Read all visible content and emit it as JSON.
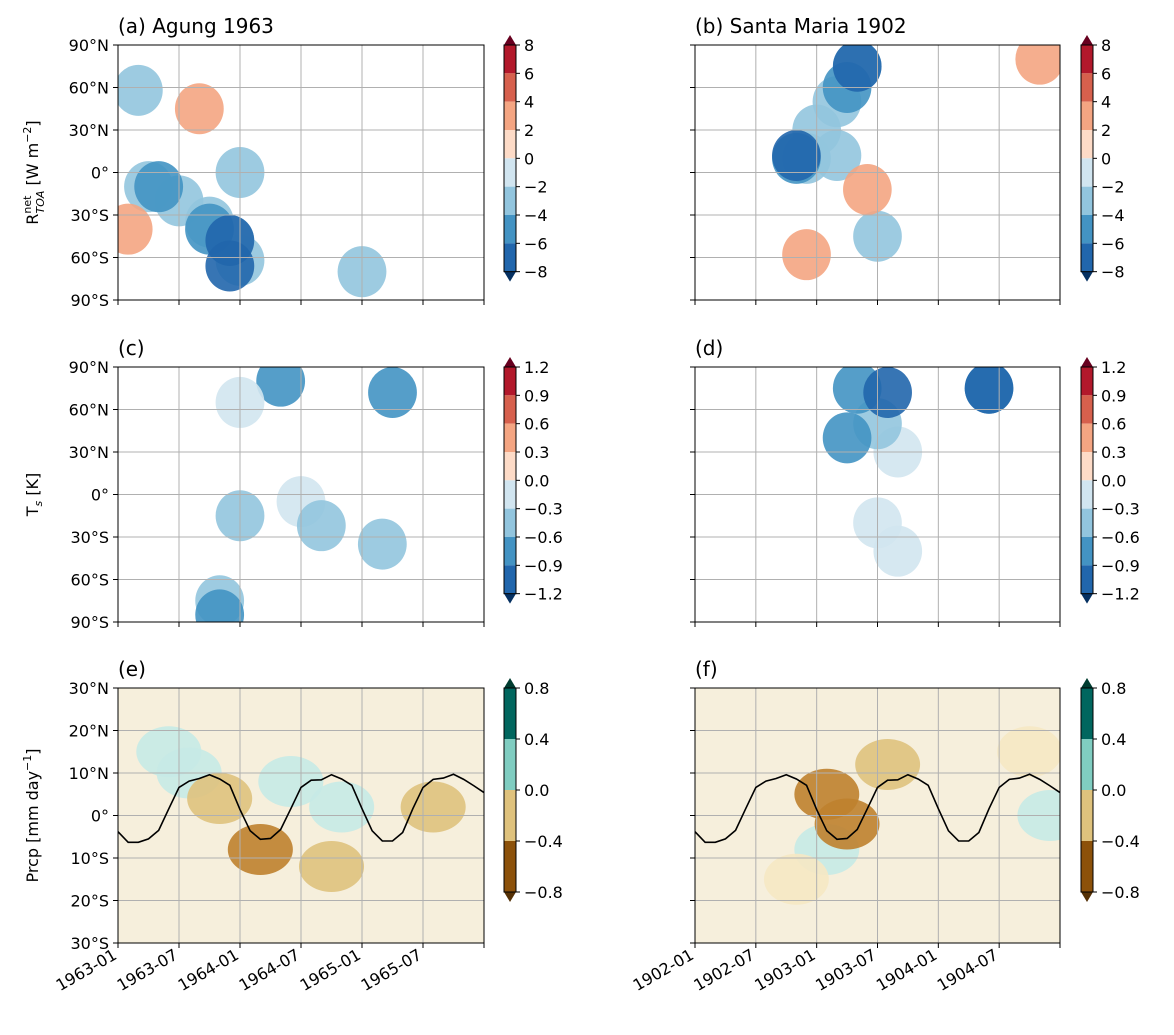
{
  "colors": {
    "grid": "#b0b0b0",
    "rdbu": [
      "#053061",
      "#2166ac",
      "#4393c3",
      "#92c5de",
      "#d1e5f0",
      "#fddbc7",
      "#f4a582",
      "#d6604d",
      "#b2182b",
      "#67001f"
    ],
    "brbg": [
      "#543005",
      "#8c510a",
      "#bf812d",
      "#dfc27d",
      "#f6e8c3",
      "#c7eae5",
      "#80cdc1",
      "#35978f",
      "#01665e",
      "#003c30"
    ]
  },
  "row_labels": [
    "R$_{TOA}^{net}$ [W m$^{-2}$]",
    "T$_s$ [K]",
    "Prcp [mm day$^{-1}$]"
  ],
  "row_label_parts": [
    {
      "main": "R",
      "sub": "TOA",
      "sup": "net",
      "unit": " [W m",
      "unit_sup": "−2",
      "unit_end": "]"
    },
    {
      "main": "T",
      "sub": "s",
      "sup": "",
      "unit": " [K]",
      "unit_sup": "",
      "unit_end": ""
    },
    {
      "main": "Prcp",
      "sub": "",
      "sup": "",
      "unit": " [mm day",
      "unit_sup": "−1",
      "unit_end": "]"
    }
  ],
  "lat_ticks_full": [
    "90°N",
    "60°N",
    "30°N",
    "0°",
    "30°S",
    "60°S",
    "90°S"
  ],
  "lat_ticks_trop": [
    "30°N",
    "20°N",
    "10°N",
    "0°",
    "10°S",
    "20°S",
    "30°S"
  ],
  "colorbars": [
    {
      "labels": [
        "8",
        "6",
        "4",
        "2",
        "0",
        "−2",
        "−4",
        "−6",
        "−8"
      ],
      "cmap": "rdbu"
    },
    {
      "labels": [
        "1.2",
        "0.9",
        "0.6",
        "0.3",
        "0.0",
        "−0.3",
        "−0.6",
        "−0.9",
        "−1.2"
      ],
      "cmap": "rdbu"
    },
    {
      "labels": [
        "0.8",
        "0.4",
        "0.0",
        "−0.4",
        "−0.8"
      ],
      "cmap": "brbg"
    }
  ],
  "columns": [
    {
      "x_ticks": [
        "1963-01",
        "1963-07",
        "1964-01",
        "1964-07",
        "1965-01",
        "1965-07"
      ]
    },
    {
      "x_ticks": [
        "1902-01",
        "1902-07",
        "1903-01",
        "1903-07",
        "1904-01",
        "1904-07"
      ]
    }
  ],
  "chart_data": [
    {
      "panel": "(a) Agung 1963",
      "type": "heatmap",
      "variable": "R_TOA^net",
      "x_range": [
        "1963-01",
        "1965-12"
      ],
      "y_range": [
        -90,
        90
      ],
      "clim": [
        -8,
        8
      ],
      "levels": [
        -8,
        -6,
        -4,
        -2,
        0,
        2,
        4,
        6,
        8
      ],
      "cmap": "RdBu_r",
      "grid": true,
      "blobs": [
        {
          "lat": -10,
          "month": 3,
          "value": -3.0
        },
        {
          "lat": -20,
          "month": 6,
          "value": -3.0
        },
        {
          "lat": -35,
          "month": 9,
          "value": -3.0
        },
        {
          "lat": -48,
          "month": 11,
          "value": -3.0
        },
        {
          "lat": -62,
          "month": 12,
          "value": -3.0
        },
        {
          "lat": 0,
          "month": 12,
          "value": -2.5
        },
        {
          "lat": -10,
          "month": 4,
          "value": -5.0
        },
        {
          "lat": -40,
          "month": 9,
          "value": -5.0
        },
        {
          "lat": -48,
          "month": 11,
          "value": -7.0
        },
        {
          "lat": -66,
          "month": 11,
          "value": -7.0
        },
        {
          "lat": -70,
          "month": 24,
          "value": -3.0
        },
        {
          "lat": 58,
          "month": 2,
          "value": -2.5
        },
        {
          "lat": -40,
          "month": 1,
          "value": 3.0
        },
        {
          "lat": 45,
          "month": 8,
          "value": 3.0
        }
      ]
    },
    {
      "panel": "(b) Santa Maria 1902",
      "type": "heatmap",
      "variable": "R_TOA^net",
      "x_range": [
        "1902-01",
        "1904-12"
      ],
      "y_range": [
        -90,
        90
      ],
      "clim": [
        -8,
        8
      ],
      "levels": [
        -8,
        -6,
        -4,
        -2,
        0,
        2,
        4,
        6,
        8
      ],
      "cmap": "RdBu_r",
      "grid": true,
      "blobs": [
        {
          "lat": 10,
          "month": 11,
          "value": -3.0
        },
        {
          "lat": 30,
          "month": 12,
          "value": -3.0
        },
        {
          "lat": 50,
          "month": 14,
          "value": -3.0
        },
        {
          "lat": 75,
          "month": 16,
          "value": -3.0
        },
        {
          "lat": 12,
          "month": 14,
          "value": -2.5
        },
        {
          "lat": 10,
          "month": 10,
          "value": -5.0
        },
        {
          "lat": 12,
          "month": 10,
          "value": -7.0
        },
        {
          "lat": 60,
          "month": 15,
          "value": -5.0
        },
        {
          "lat": 75,
          "month": 16,
          "value": -7.0
        },
        {
          "lat": -45,
          "month": 18,
          "value": -3.0
        },
        {
          "lat": -12,
          "month": 17,
          "value": 3.0
        },
        {
          "lat": 80,
          "month": 34,
          "value": 3.0
        },
        {
          "lat": -58,
          "month": 11,
          "value": 3.0
        }
      ]
    },
    {
      "panel": "(c)",
      "type": "heatmap",
      "variable": "T_s",
      "x_range": [
        "1963-01",
        "1965-12"
      ],
      "y_range": [
        -90,
        90
      ],
      "clim": [
        -1.2,
        1.2
      ],
      "levels": [
        -1.2,
        -0.9,
        -0.6,
        -0.3,
        0.0,
        0.3,
        0.6,
        0.9,
        1.2
      ],
      "cmap": "RdBu_r",
      "grid": true,
      "blobs": [
        {
          "lat": -5,
          "month": 18,
          "value": -0.2
        },
        {
          "lat": -15,
          "month": 12,
          "value": -0.45
        },
        {
          "lat": -22,
          "month": 20,
          "value": -0.45
        },
        {
          "lat": -35,
          "month": 26,
          "value": -0.45
        },
        {
          "lat": -75,
          "month": 10,
          "value": -0.45
        },
        {
          "lat": -85,
          "month": 10,
          "value": -0.8
        },
        {
          "lat": 80,
          "month": 16,
          "value": -0.8
        },
        {
          "lat": 72,
          "month": 27,
          "value": -0.8
        },
        {
          "lat": 65,
          "month": 12,
          "value": -0.2
        }
      ]
    },
    {
      "panel": "(d)",
      "type": "heatmap",
      "variable": "T_s",
      "x_range": [
        "1902-01",
        "1904-12"
      ],
      "y_range": [
        -90,
        90
      ],
      "clim": [
        -1.2,
        1.2
      ],
      "levels": [
        -1.2,
        -0.9,
        -0.6,
        -0.3,
        0.0,
        0.3,
        0.6,
        0.9,
        1.2
      ],
      "cmap": "RdBu_r",
      "grid": true,
      "blobs": [
        {
          "lat": 30,
          "month": 20,
          "value": -0.2
        },
        {
          "lat": 50,
          "month": 18,
          "value": -0.45
        },
        {
          "lat": 40,
          "month": 15,
          "value": -0.8
        },
        {
          "lat": 75,
          "month": 16,
          "value": -0.8
        },
        {
          "lat": 72,
          "month": 19,
          "value": -1.05
        },
        {
          "lat": 75,
          "month": 29,
          "value": -0.8
        },
        {
          "lat": 75,
          "month": 29,
          "value": -1.05
        },
        {
          "lat": -20,
          "month": 18,
          "value": -0.2
        },
        {
          "lat": -40,
          "month": 20,
          "value": -0.2
        }
      ]
    },
    {
      "panel": "(e)",
      "type": "heatmap",
      "variable": "Prcp",
      "x_range": [
        "1963-01",
        "1965-12"
      ],
      "y_range": [
        -30,
        30
      ],
      "clim": [
        -1,
        1
      ],
      "levels": [
        -0.8,
        -0.4,
        0.0,
        0.4,
        0.8
      ],
      "cmap": "BrBG",
      "grid": true,
      "hatching": "significance stippling",
      "itcz_line_lat": [
        -3.8,
        -6.3,
        -6.3,
        -5.5,
        -3.5,
        1.6,
        6.6,
        8.1,
        8.7,
        9.6,
        8.6,
        7.1,
        1.4,
        -3.6,
        -5.6,
        -5.4,
        -3.3,
        1.6,
        6.6,
        8.3,
        8.4,
        9.6,
        8.6,
        7.1,
        1.6,
        -3.6,
        -6.0,
        -6.0,
        -4.0,
        1.6,
        6.6,
        8.5,
        8.8,
        9.7,
        8.5,
        7.0,
        5.4
      ],
      "blobs": [
        {
          "lat": 15,
          "month": 5,
          "value": 0.35
        },
        {
          "lat": 10,
          "month": 7,
          "value": 0.3
        },
        {
          "lat": 4,
          "month": 10,
          "value": -0.35
        },
        {
          "lat": -8,
          "month": 14,
          "value": -0.5
        },
        {
          "lat": 8,
          "month": 17,
          "value": 0.3
        },
        {
          "lat": 2,
          "month": 22,
          "value": 0.35
        },
        {
          "lat": -12,
          "month": 21,
          "value": -0.2
        },
        {
          "lat": 2,
          "month": 31,
          "value": -0.25
        }
      ]
    },
    {
      "panel": "(f)",
      "type": "heatmap",
      "variable": "Prcp",
      "x_range": [
        "1902-01",
        "1904-12"
      ],
      "y_range": [
        -30,
        30
      ],
      "clim": [
        -1,
        1
      ],
      "levels": [
        -0.8,
        -0.4,
        0.0,
        0.4,
        0.8
      ],
      "cmap": "BrBG",
      "grid": true,
      "hatching": "significance stippling",
      "itcz_line_lat": [
        -3.8,
        -6.3,
        -6.3,
        -5.5,
        -3.5,
        1.6,
        6.6,
        8.1,
        8.7,
        9.6,
        8.6,
        7.1,
        1.4,
        -3.6,
        -5.6,
        -5.4,
        -3.3,
        1.6,
        6.6,
        8.3,
        8.4,
        9.6,
        8.6,
        7.1,
        1.6,
        -3.6,
        -6.0,
        -6.0,
        -4.0,
        1.6,
        6.6,
        8.5,
        8.8,
        9.7,
        8.5,
        7.0,
        5.4
      ],
      "blobs": [
        {
          "lat": 5,
          "month": 13,
          "value": -0.45
        },
        {
          "lat": 12,
          "month": 19,
          "value": -0.3
        },
        {
          "lat": -8,
          "month": 13,
          "value": 0.35
        },
        {
          "lat": -15,
          "month": 10,
          "value": 0.2
        },
        {
          "lat": -2,
          "month": 15,
          "value": -0.4
        },
        {
          "lat": 15,
          "month": 33,
          "value": -0.15
        },
        {
          "lat": 0,
          "month": 35,
          "value": 0.25
        }
      ]
    }
  ]
}
